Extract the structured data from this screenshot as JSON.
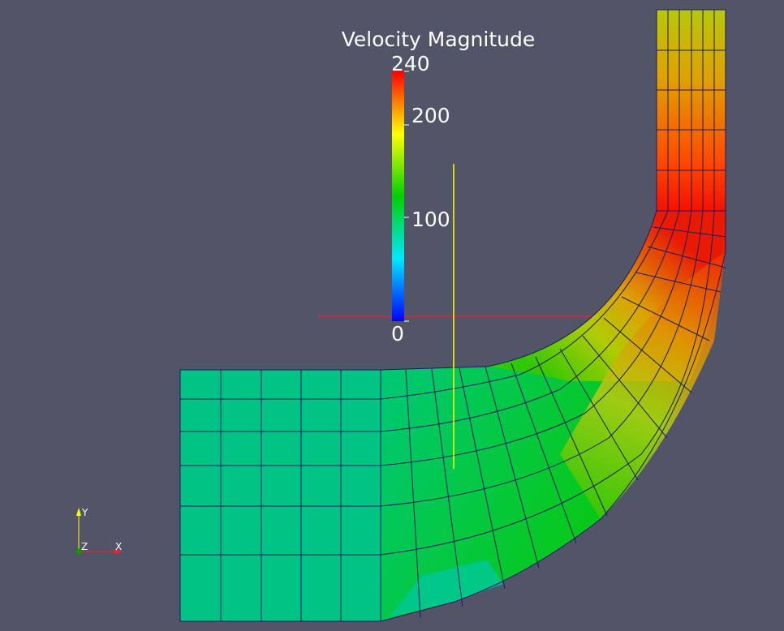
{
  "legend": {
    "title": "Velocity Magnitude",
    "labels": {
      "max": "240",
      "l200": "200",
      "l100": "100",
      "min": "0"
    },
    "colormap": [
      "#0000ff",
      "#00ffff",
      "#00d000",
      "#ffff00",
      "#ff0000"
    ]
  },
  "axes": {
    "y": "Y",
    "z": "Z",
    "x": "X"
  },
  "colors": {
    "background": "#525467",
    "mesh_line": "#1a1a66",
    "slice_x": "#ff2020",
    "slice_y": "#ffff00"
  }
}
